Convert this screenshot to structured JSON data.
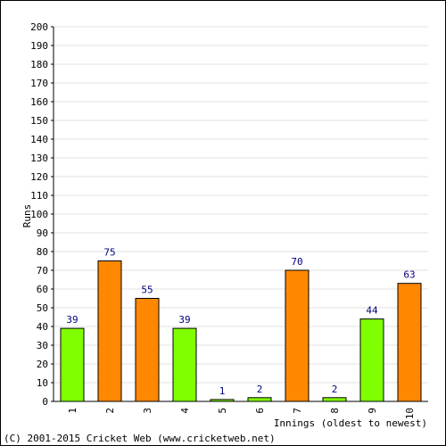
{
  "chart_data": {
    "type": "bar",
    "ylabel": "Runs",
    "xlabel": "Innings (oldest to newest)",
    "categories": [
      "1",
      "2",
      "3",
      "4",
      "5",
      "6",
      "7",
      "8",
      "9",
      "10"
    ],
    "values": [
      39,
      75,
      55,
      39,
      1,
      2,
      70,
      2,
      44,
      63
    ],
    "bar_colors": [
      "#80ff00",
      "#ff8800",
      "#ff8800",
      "#80ff00",
      "#80ff00",
      "#80ff00",
      "#ff8800",
      "#80ff00",
      "#80ff00",
      "#ff8800"
    ],
    "ylim": [
      0,
      200
    ],
    "ytick_step": 10,
    "grid": true,
    "value_label_color": "#000080"
  },
  "footer": {
    "copyright": "(C) 2001-2015 Cricket Web (www.cricketweb.net)"
  }
}
